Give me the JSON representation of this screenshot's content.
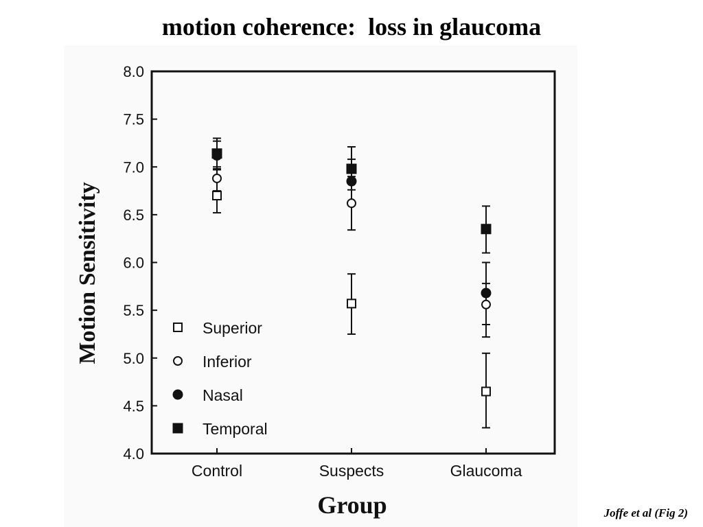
{
  "slide": {
    "title": "motion coherence:  loss in glaucoma",
    "citation": "Joffe et al (Fig 2)"
  },
  "chart_data": {
    "type": "scatter",
    "title": "",
    "xlabel": "Group",
    "ylabel": "Motion  Sensitivity",
    "categories": [
      "Control",
      "Suspects",
      "Glaucoma"
    ],
    "ylim": [
      4.0,
      8.0
    ],
    "yticks": [
      "4.0",
      "4.5",
      "5.0",
      "5.5",
      "6.0",
      "6.5",
      "7.0",
      "7.5",
      "8.0"
    ],
    "grid": false,
    "legend_position": "bottom-left",
    "series": [
      {
        "name": "Superior",
        "marker": "open-square",
        "values": [
          6.7,
          5.57,
          4.65
        ],
        "err_low": [
          6.52,
          5.25,
          4.27
        ],
        "err_high": [
          6.88,
          5.88,
          5.05
        ]
      },
      {
        "name": "Inferior",
        "marker": "open-circle",
        "values": [
          6.88,
          6.62,
          5.56
        ],
        "err_low": [
          6.75,
          6.34,
          5.35
        ],
        "err_high": [
          7.0,
          6.9,
          5.78
        ]
      },
      {
        "name": "Nasal",
        "marker": "filled-circle",
        "values": [
          7.12,
          6.85,
          5.68
        ],
        "err_low": [
          6.97,
          6.62,
          5.22
        ],
        "err_high": [
          7.27,
          7.08,
          6.0
        ]
      },
      {
        "name": "Temporal",
        "marker": "filled-square",
        "values": [
          7.14,
          6.98,
          6.35
        ],
        "err_low": [
          6.98,
          6.76,
          6.1
        ],
        "err_high": [
          7.3,
          7.21,
          6.59
        ]
      }
    ]
  }
}
